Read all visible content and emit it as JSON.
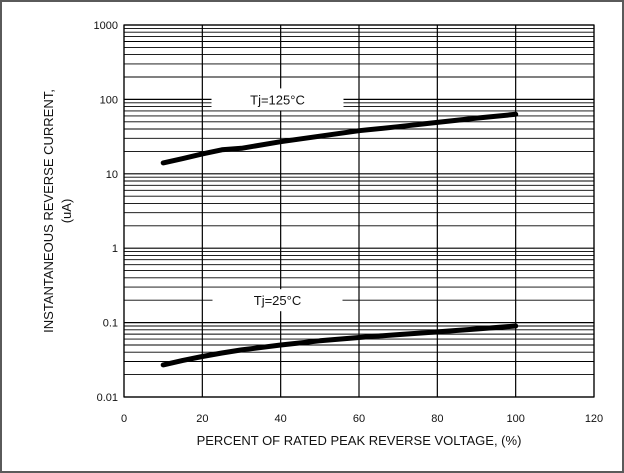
{
  "chart_data": {
    "type": "line",
    "title": "",
    "xlabel": "PERCENT OF RATED PEAK REVERSE VOLTAGE, (%)",
    "ylabel_lines": [
      "INSTANTANEOUS REVERSE CURRENT,",
      "(uA)"
    ],
    "x_scale": "linear",
    "y_scale": "log",
    "xlim": [
      0,
      120
    ],
    "ylim": [
      0.01,
      1000
    ],
    "x_ticks": [
      0,
      20,
      40,
      60,
      80,
      100,
      120
    ],
    "x_tick_labels": [
      "0",
      "20",
      "40",
      "60",
      "80",
      "100",
      "120"
    ],
    "y_ticks": [
      0.01,
      0.1,
      1,
      10,
      100,
      1000
    ],
    "y_tick_labels": [
      "0.01",
      "0.1",
      "1",
      "10",
      "100",
      "1000"
    ],
    "grid": true,
    "series": [
      {
        "name": "Tj=125°C",
        "color": "#000000",
        "x": [
          10,
          15,
          20,
          25,
          30,
          40,
          50,
          60,
          70,
          80,
          90,
          100
        ],
        "y": [
          14,
          16,
          18.5,
          21,
          22,
          27,
          32,
          38,
          43,
          49,
          56,
          63
        ]
      },
      {
        "name": "Tj=25°C",
        "color": "#000000",
        "x": [
          10,
          15,
          20,
          25,
          30,
          40,
          50,
          60,
          70,
          80,
          90,
          100
        ],
        "y": [
          0.027,
          0.031,
          0.035,
          0.039,
          0.043,
          0.05,
          0.057,
          0.063,
          0.069,
          0.075,
          0.082,
          0.09
        ]
      }
    ],
    "annotations": [
      {
        "text": "Tj=125°C",
        "x": 30,
        "y": 100
      },
      {
        "text": "Tj=25°C",
        "x": 30,
        "y": 0.2
      }
    ]
  }
}
